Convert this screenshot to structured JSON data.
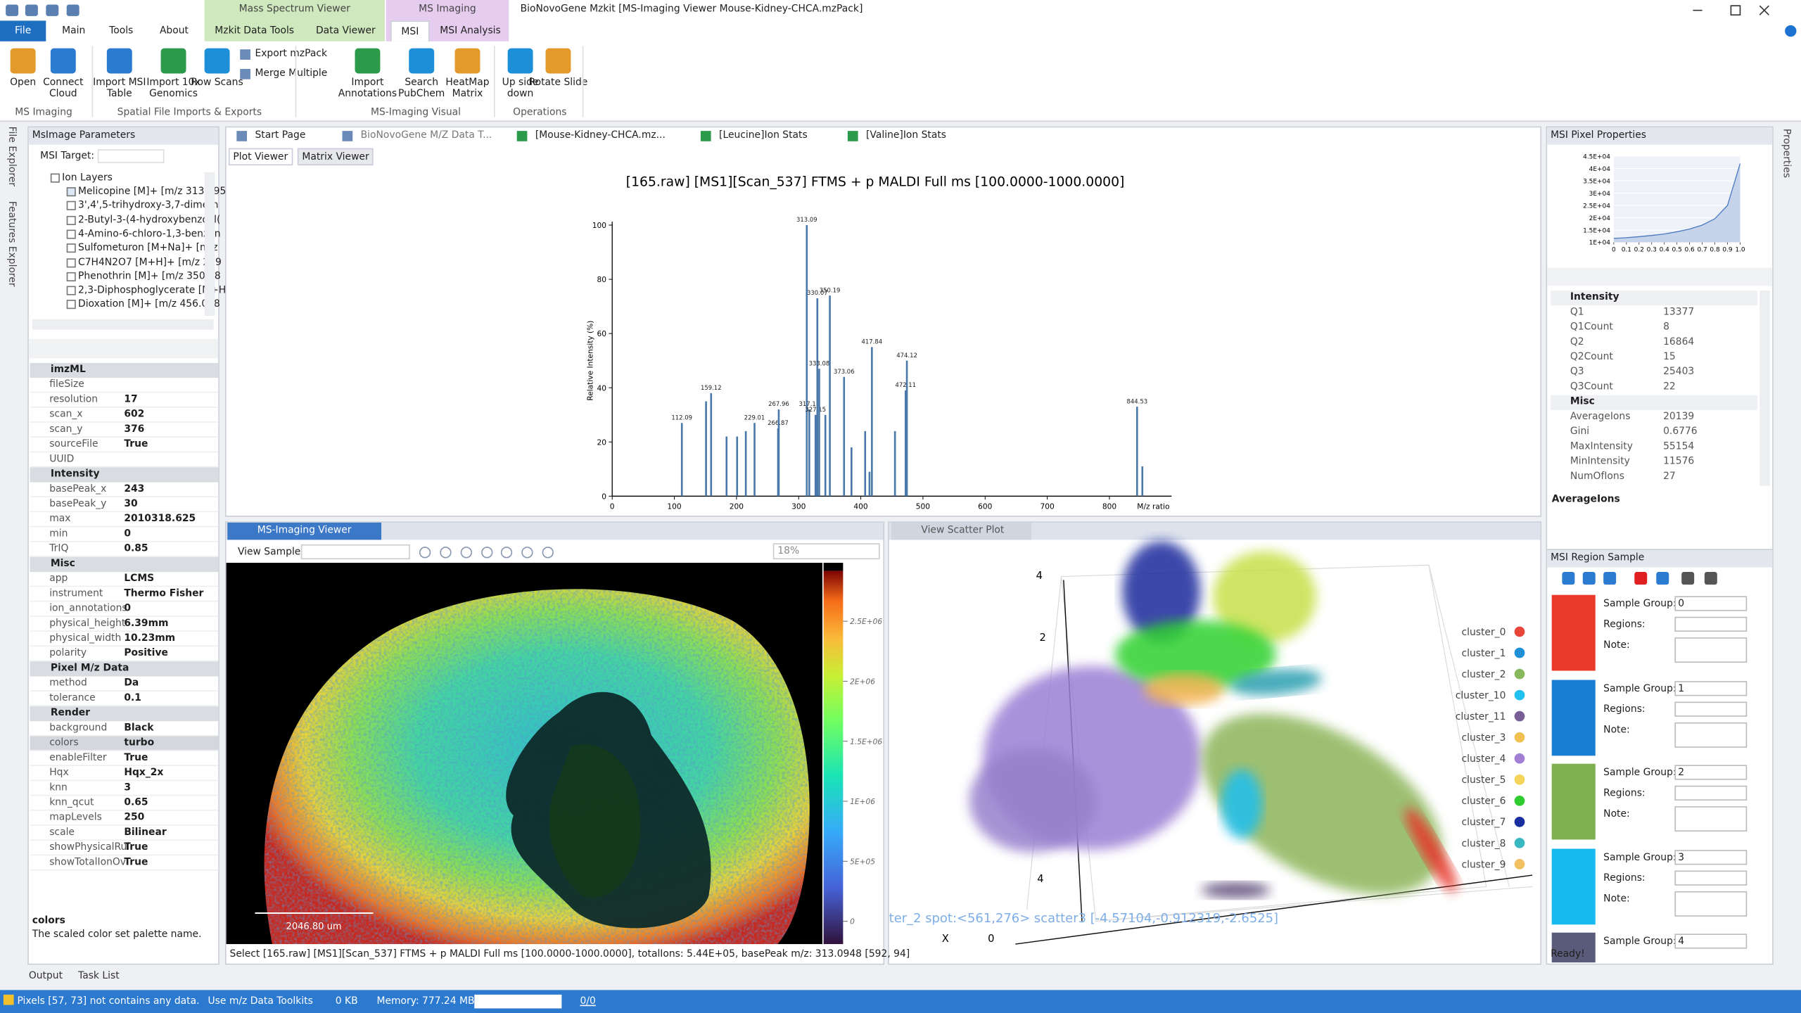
{
  "window": {
    "title": "BioNovoGene Mzkit [MS-Imaging Viewer Mouse-Kidney-CHCA.mzPack]",
    "context_tabs": [
      "Mass Spectrum Viewer",
      "MS Imaging"
    ]
  },
  "ribbon": {
    "tabs": [
      "File",
      "Main",
      "Tools",
      "About",
      "Mzkit Data Tools",
      "Data Viewer",
      "MSI",
      "MSI Analysis"
    ],
    "groups": [
      {
        "label": "MS Imaging",
        "buttons": [
          "Open",
          "Connect Cloud"
        ]
      },
      {
        "label": "Spatial File Imports & Exports",
        "buttons": [
          "Import MSI Table",
          "Import 10x Genomics",
          "Row Scans"
        ],
        "small_buttons": [
          "Export mzPack",
          "Merge Multiple"
        ]
      },
      {
        "label": "MS-Imaging Visual",
        "buttons": [
          "Import Annotations",
          "Search PubChem",
          "HeatMap Matrix"
        ]
      },
      {
        "label": "Operations",
        "buttons": [
          "Up side down",
          "Rotate Slide"
        ]
      }
    ]
  },
  "side_tabs": [
    "File Explorer",
    "Features Explorer"
  ],
  "right_side_tab": "Properties",
  "left_panel": {
    "title": "MsImage Parameters",
    "target_label": "MSI Target:",
    "tree_root": "Ion Layers",
    "ions": [
      "Melicopine [M]+ [m/z 313.095",
      "3',4',5-trihydroxy-3,7-dimeth",
      "2-Butyl-3-(4-hydroxybenzoyl(",
      "4-Amino-6-chloro-1,3-benzen",
      "Sulfometuron [M+Na]+ [m/z",
      "C7H4N2O7 [M+H]+ [m/z 229",
      "Phenothrin [M]+ [m/z 350.18",
      "2,3-Diphosphoglycerate [M+H",
      "Dioxation [M]+ [m/z 456.008"
    ],
    "sections": [
      {
        "name": "imzML",
        "rows": [
          [
            "fileSize"
          ],
          [
            "resolution",
            "17"
          ],
          [
            "scan_x",
            "602"
          ],
          [
            "scan_y",
            "376"
          ],
          [
            "sourceFile",
            "True"
          ],
          [
            "UUID"
          ]
        ]
      },
      {
        "name": "Intensity",
        "rows": [
          [
            "basePeak_x",
            "243"
          ],
          [
            "basePeak_y",
            "30"
          ],
          [
            "max",
            "2010318.625"
          ],
          [
            "min",
            "0"
          ],
          [
            "TrIQ",
            "0.85"
          ]
        ]
      },
      {
        "name": "Misc",
        "rows": [
          [
            "app",
            "LCMS"
          ],
          [
            "instrument",
            "Thermo Fisher"
          ],
          [
            "ion_annotations",
            "0"
          ],
          [
            "physical_height",
            "6.39mm"
          ],
          [
            "physical_width",
            "10.23mm"
          ],
          [
            "polarity",
            "Positive"
          ]
        ]
      },
      {
        "name": "Pixel M/z Data",
        "rows": [
          [
            "method",
            "Da"
          ],
          [
            "tolerance",
            "0.1"
          ]
        ]
      },
      {
        "name": "Render",
        "rows": [
          [
            "background",
            "Black"
          ],
          [
            "colors",
            "turbo"
          ],
          [
            "enableFilter",
            "True"
          ],
          [
            "Hqx",
            "Hqx_2x"
          ],
          [
            "knn",
            "3"
          ],
          [
            "knn_qcut",
            "0.65"
          ],
          [
            "mapLevels",
            "250"
          ],
          [
            "scale",
            "Bilinear"
          ],
          [
            "showPhysicalRul",
            "True"
          ],
          [
            "showTotalIonOv",
            "True"
          ]
        ]
      }
    ],
    "description": {
      "title": "colors",
      "text": "The scaled color set palette name."
    }
  },
  "doc_tabs": [
    "Start Page",
    "BioNovoGene M/Z Data T...",
    "[Mouse-Kidney-CHCA.mz...",
    "[Leucine]Ion Stats",
    "[Valine]Ion Stats"
  ],
  "plot_tabs": [
    "Plot Viewer",
    "Matrix Viewer"
  ],
  "spectrum_plot": {
    "type": "bar",
    "title": "[165.raw] [MS1][Scan_537] FTMS + p MALDI Full ms [100.0000-1000.0000]",
    "xlabel": "M/z ratio",
    "ylabel": "Relative Intensity (%)",
    "xlim": [
      0,
      900
    ],
    "ylim": [
      0,
      100
    ],
    "xticks": [
      0,
      100,
      200,
      300,
      400,
      500,
      600,
      700,
      800
    ],
    "yticks": [
      0,
      20,
      40,
      60,
      80,
      100
    ],
    "color": "#4a78a8",
    "peaks": {
      "x": [
        112.09,
        159.12,
        229.01,
        266.87,
        267.96,
        313.09,
        317.11,
        327.15,
        330.07,
        333.08,
        350.19,
        373.06,
        417.84,
        472.11,
        474.12,
        844.53
      ],
      "values": [
        27,
        38,
        27,
        25,
        32,
        100,
        32,
        30,
        73,
        47,
        74,
        44,
        55,
        39,
        50,
        33
      ]
    },
    "minor_peaks": {
      "x": [
        151,
        184,
        201,
        215,
        343,
        385,
        407,
        414,
        455,
        853
      ],
      "values": [
        35,
        22,
        22,
        24,
        30,
        18,
        24,
        9,
        24,
        11
      ]
    }
  },
  "msi_viewer": {
    "tab": "MS-Imaging Viewer",
    "view_sample": "View Sample:",
    "zoom": "18%",
    "scale_bar": "2046.80 um",
    "colorbar": {
      "lim": [
        -190000,
        2920000
      ],
      "ticks": [
        {
          "value": 0,
          "label": "0"
        },
        {
          "value": 500000,
          "label": "5E+05"
        },
        {
          "value": 1000000,
          "label": "1E+06"
        },
        {
          "value": 1500000,
          "label": "1.5E+06"
        },
        {
          "value": 2000000,
          "label": "2E+06"
        },
        {
          "value": 2500000,
          "label": "2.5E+06"
        }
      ]
    },
    "status": "Select [165.raw] [MS1][Scan_537] FTMS + p MALDI Full ms [100.0000-1000.0000], totalIons: 5.44E+05, basePeak m/z: 313.0948   [592, 94]"
  },
  "scatter_viewer": {
    "tab": "View Scatter Plot",
    "axis_texts": [
      "4",
      "2",
      "4",
      "0",
      "X"
    ],
    "tooltip": "ter_2 spot:<561,276> scatter3 [-4.57104,-0.912319,-2.6525]",
    "clusters": [
      {
        "name": "cluster_0",
        "color": "#e8443a"
      },
      {
        "name": "cluster_1",
        "color": "#1f8fd6"
      },
      {
        "name": "cluster_2",
        "color": "#88b85c"
      },
      {
        "name": "cluster_10",
        "color": "#20c0ef"
      },
      {
        "name": "cluster_11",
        "color": "#7a5e96"
      },
      {
        "name": "cluster_3",
        "color": "#f2c051"
      },
      {
        "name": "cluster_4",
        "color": "#a27fd4"
      },
      {
        "name": "cluster_5",
        "color": "#f6d35a"
      },
      {
        "name": "cluster_6",
        "color": "#2ecc2e"
      },
      {
        "name": "cluster_7",
        "color": "#1a2ea0"
      },
      {
        "name": "cluster_8",
        "color": "#3ab8c0"
      },
      {
        "name": "cluster_9",
        "color": "#f2c060"
      }
    ]
  },
  "pixel_properties": {
    "title": "MSI Pixel Properties",
    "chart": {
      "type": "line",
      "color": "#4a78c0",
      "x": [
        0,
        0.1,
        0.2,
        0.3,
        0.4,
        0.5,
        0.6,
        0.7,
        0.8,
        0.9,
        1
      ],
      "values": [
        11600,
        11900,
        12300,
        12800,
        13400,
        14300,
        15400,
        17000,
        19600,
        25000,
        42000
      ],
      "xlim": [
        0,
        1
      ],
      "ylim": [
        10000,
        45000
      ],
      "xticks": [
        0,
        0.1,
        0.2,
        0.3,
        0.4,
        0.5,
        0.6,
        0.7,
        0.8,
        0.9,
        {
          "value": 1,
          "label": "1.0"
        }
      ],
      "yticks": [
        {
          "value": 10000,
          "label": "1E+04"
        },
        {
          "value": 15000,
          "label": "1.5E+04"
        },
        {
          "value": 20000,
          "label": "2E+04"
        },
        {
          "value": 25000,
          "label": "2.5E+04"
        },
        {
          "value": 30000,
          "label": "3E+04"
        },
        {
          "value": 35000,
          "label": "3.5E+04"
        },
        {
          "value": 40000,
          "label": "4E+04"
        },
        {
          "value": 45000,
          "label": "4.5E+04"
        }
      ]
    },
    "sections": [
      {
        "name": "Intensity",
        "rows": [
          [
            "Q1",
            "13377"
          ],
          [
            "Q1Count",
            "8"
          ],
          [
            "Q2",
            "16864"
          ],
          [
            "Q2Count",
            "15"
          ],
          [
            "Q3",
            "25403"
          ],
          [
            "Q3Count",
            "22"
          ]
        ]
      },
      {
        "name": "Misc",
        "rows": [
          [
            "AverageIons",
            "20139"
          ],
          [
            "Gini",
            "0.6776"
          ],
          [
            "MaxIntensity",
            "55154"
          ],
          [
            "MinIntensity",
            "11576"
          ],
          [
            "NumOfIons",
            "27"
          ]
        ]
      }
    ],
    "description": "AverageIons"
  },
  "region_sample": {
    "title": "MSI Region Sample",
    "labels": [
      "Sample Group:",
      "Regions:",
      "Note:"
    ],
    "groups": [
      {
        "value": "0",
        "color": "#e8392a"
      },
      {
        "value": "1",
        "color": "#1a7fd4"
      },
      {
        "value": "2",
        "color": "#7fb04f"
      },
      {
        "value": "3",
        "color": "#18b9ee"
      },
      {
        "value": "4",
        "color": "#5a5a7a"
      }
    ],
    "ready": "Ready!"
  },
  "bottom_tabs": [
    "Output",
    "Task List"
  ],
  "status_bar": {
    "message": "Pixels [57, 73] not contains any data.",
    "toolkit": "Use m/z Data Toolkits",
    "size": "0 KB",
    "memory": "Memory: 777.24 MB",
    "progress": "0/0"
  }
}
